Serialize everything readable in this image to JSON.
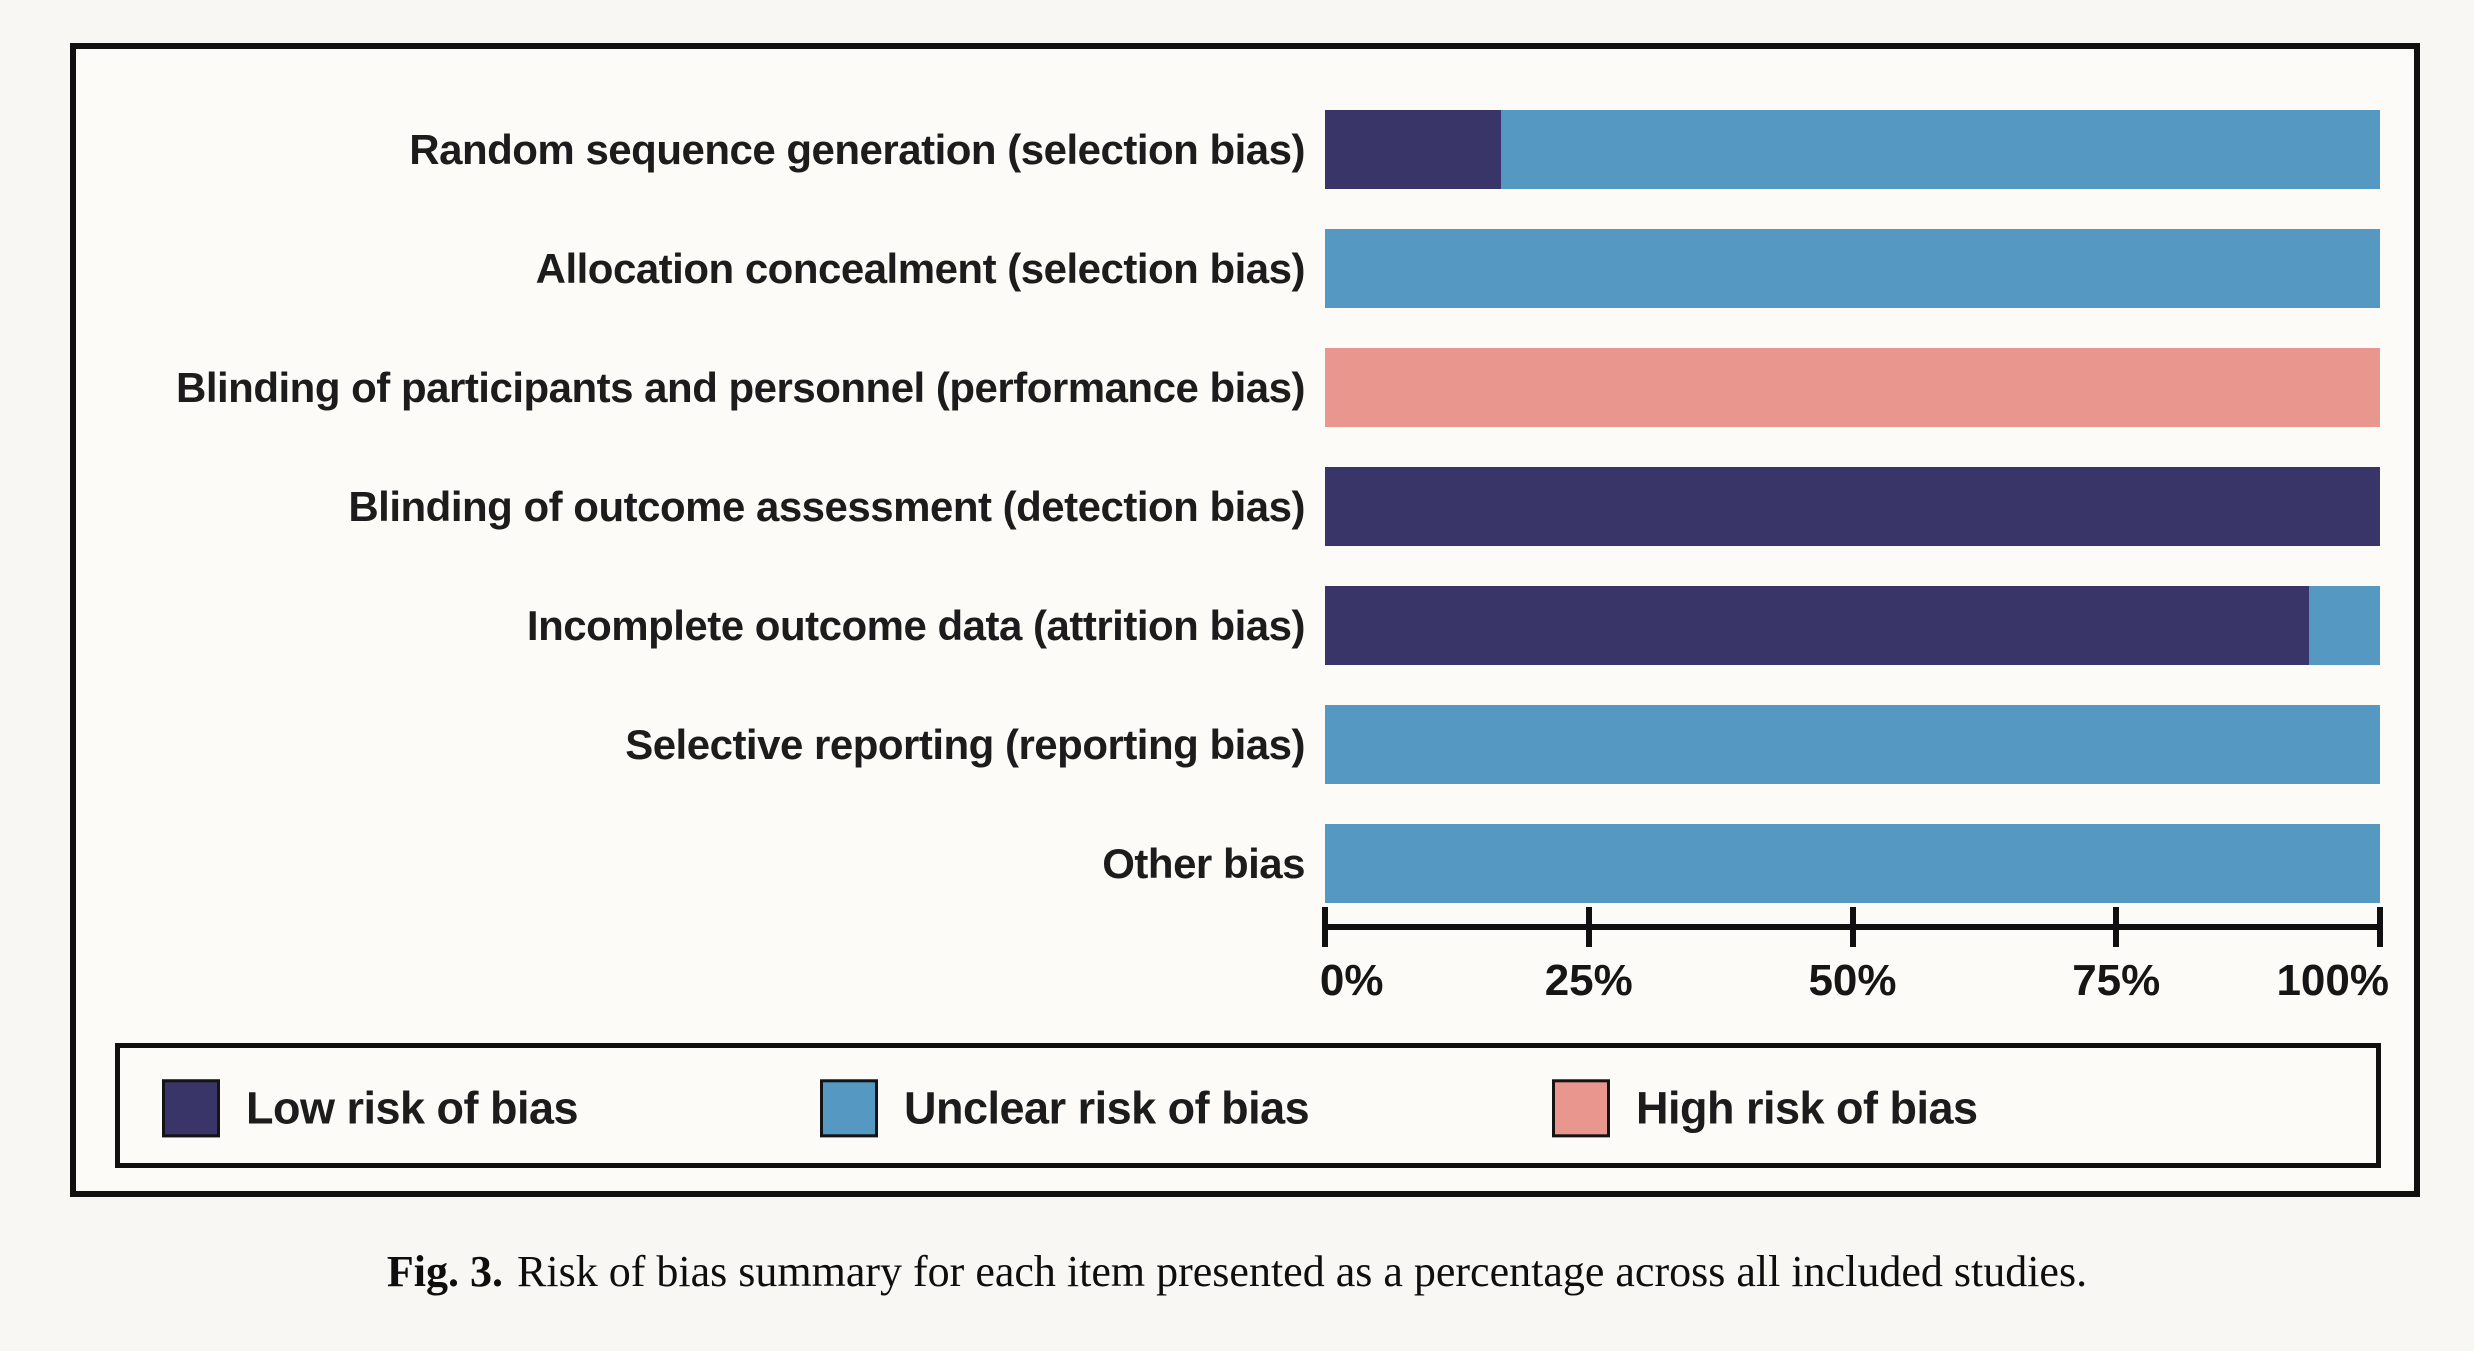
{
  "figure": {
    "caption_prefix": "Fig. 3.",
    "caption_text": "Risk of bias summary for each item presented as a percentage across all included studies."
  },
  "colors": {
    "low": "#3a3569",
    "unclear": "#5599c2",
    "high": "#e9968f",
    "border": "#101010",
    "background": "#f8f7f4",
    "text": "#1c1c1c"
  },
  "chart_data": {
    "type": "bar",
    "orientation": "horizontal",
    "stacked": true,
    "title": "",
    "xlabel": "",
    "ylabel": "",
    "xlim": [
      0,
      100
    ],
    "x_unit": "percent",
    "x_ticks": [
      "0%",
      "25%",
      "50%",
      "75%",
      "100%"
    ],
    "grid": false,
    "legend_position": "bottom",
    "categories": [
      "Random sequence generation (selection bias)",
      "Allocation concealment (selection bias)",
      "Blinding of participants and personnel (performance bias)",
      "Blinding of outcome assessment (detection bias)",
      "Incomplete outcome data (attrition bias)",
      "Selective reporting (reporting bias)",
      "Other bias"
    ],
    "series": [
      {
        "name": "Low risk of bias",
        "color_key": "low",
        "values": [
          16.7,
          0,
          0,
          100,
          93.3,
          0,
          0
        ]
      },
      {
        "name": "Unclear risk of bias",
        "color_key": "unclear",
        "values": [
          83.3,
          100,
          0,
          0,
          6.7,
          100,
          100
        ]
      },
      {
        "name": "High risk of bias",
        "color_key": "high",
        "values": [
          0,
          0,
          100,
          0,
          0,
          0,
          0
        ]
      }
    ],
    "legend": [
      {
        "label": "Low risk of bias",
        "color_key": "low"
      },
      {
        "label": "Unclear risk of bias",
        "color_key": "unclear"
      },
      {
        "label": "High risk of bias",
        "color_key": "high"
      }
    ]
  }
}
